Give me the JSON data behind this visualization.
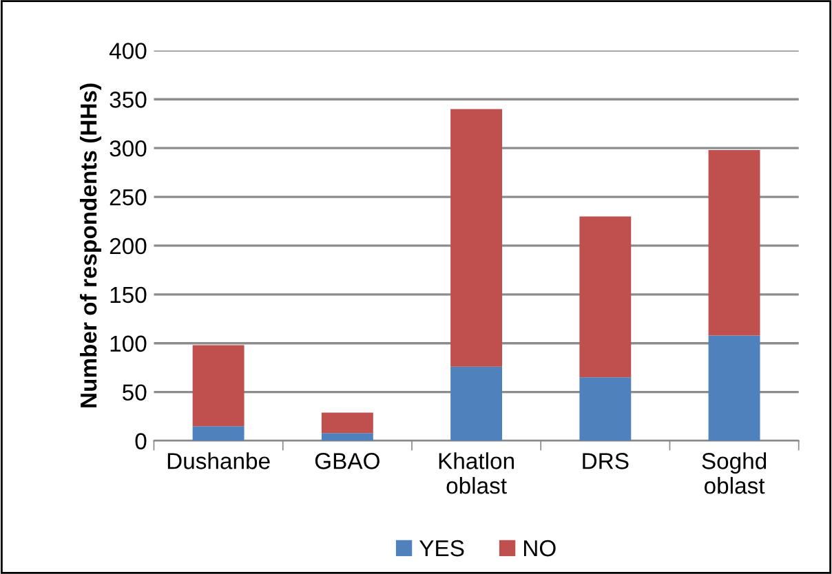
{
  "chart_data": {
    "type": "bar",
    "stacked": true,
    "ylabel": "Number of respondents (HHs)",
    "categories": [
      "Dushanbe",
      "GBAO",
      "Khatlon\noblast",
      "DRS",
      "Soghd\noblast"
    ],
    "series": [
      {
        "name": "YES",
        "color": "#4f81bd",
        "values": [
          15,
          8,
          76,
          65,
          108
        ]
      },
      {
        "name": "NO",
        "color": "#c0504d",
        "values": [
          83,
          21,
          264,
          165,
          190
        ]
      }
    ],
    "ylim": [
      0,
      400
    ],
    "yticks": [
      0,
      50,
      100,
      150,
      200,
      250,
      300,
      350,
      400
    ],
    "grid": "y",
    "legend": "bottom"
  }
}
